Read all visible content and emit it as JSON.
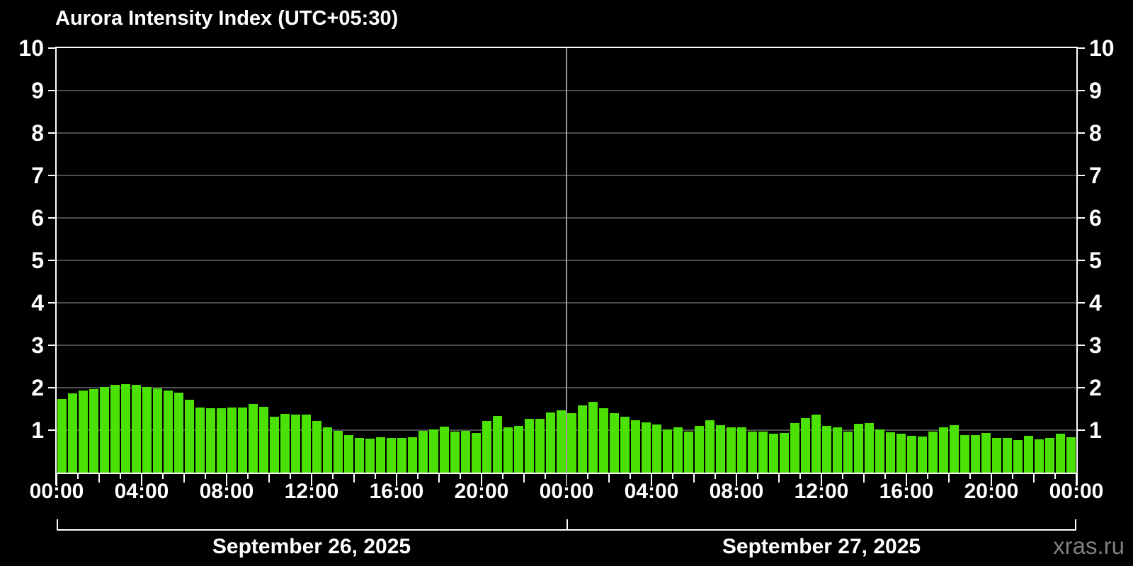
{
  "title": "Aurora Intensity Index (UTC+05:30)",
  "watermark": "xras.ru",
  "colors": {
    "background": "#000000",
    "bar": "#4ce104",
    "axis": "#ffffff",
    "gridline": "#4d4d4d",
    "day_separator": "#9a9a9a",
    "text": "#ffffff",
    "watermark": "#7f8084"
  },
  "y_axis": {
    "min": 0,
    "max": 10,
    "tick_labels": [
      "1",
      "2",
      "3",
      "4",
      "5",
      "6",
      "7",
      "8",
      "9",
      "10"
    ],
    "shown_on_both_sides": true
  },
  "x_axis": {
    "tick_labels": [
      "00:00",
      "04:00",
      "08:00",
      "12:00",
      "16:00",
      "20:00",
      "00:00",
      "04:00",
      "08:00",
      "12:00",
      "16:00",
      "20:00",
      "00:00"
    ],
    "minor_tick_interval_minutes": 60,
    "label_interval_hours": 4
  },
  "days": [
    {
      "date_label": "September 26, 2025"
    },
    {
      "date_label": "September 27, 2025"
    }
  ],
  "chart_data": {
    "type": "bar",
    "title": "Aurora Intensity Index (UTC+05:30)",
    "xlabel": "",
    "ylabel": "",
    "ylim": [
      0,
      10
    ],
    "grid": true,
    "bar_interval_minutes": 30,
    "x_start": "2025-09-26 00:00 (UTC+05:30)",
    "x_end": "2025-09-28 00:00 (UTC+05:30)",
    "series": [
      {
        "name": "September 26, 2025",
        "values": [
          1.74,
          1.87,
          1.93,
          1.97,
          2.02,
          2.06,
          2.09,
          2.07,
          2.02,
          1.98,
          1.94,
          1.89,
          1.72,
          1.53,
          1.52,
          1.52,
          1.53,
          1.54,
          1.62,
          1.55,
          1.32,
          1.39,
          1.36,
          1.36,
          1.22,
          1.07,
          0.99,
          0.88,
          0.82,
          0.8,
          0.84,
          0.81,
          0.82,
          0.84,
          0.99,
          1.02,
          1.08,
          0.96,
          0.98,
          0.94,
          1.22,
          1.33,
          1.06,
          1.1,
          1.27,
          1.27,
          1.42,
          1.46
        ]
      },
      {
        "name": "September 27, 2025",
        "values": [
          1.4,
          1.59,
          1.66,
          1.52,
          1.4,
          1.32,
          1.23,
          1.18,
          1.14,
          1.01,
          1.06,
          0.97,
          1.1,
          1.23,
          1.11,
          1.07,
          1.07,
          0.96,
          0.96,
          0.91,
          0.93,
          1.17,
          1.29,
          1.37,
          1.1,
          1.07,
          0.96,
          1.15,
          1.17,
          1.02,
          0.95,
          0.91,
          0.86,
          0.85,
          0.96,
          1.07,
          1.12,
          0.88,
          0.89,
          0.93,
          0.81,
          0.82,
          0.77,
          0.87,
          0.79,
          0.82,
          0.91,
          0.84
        ]
      }
    ]
  }
}
